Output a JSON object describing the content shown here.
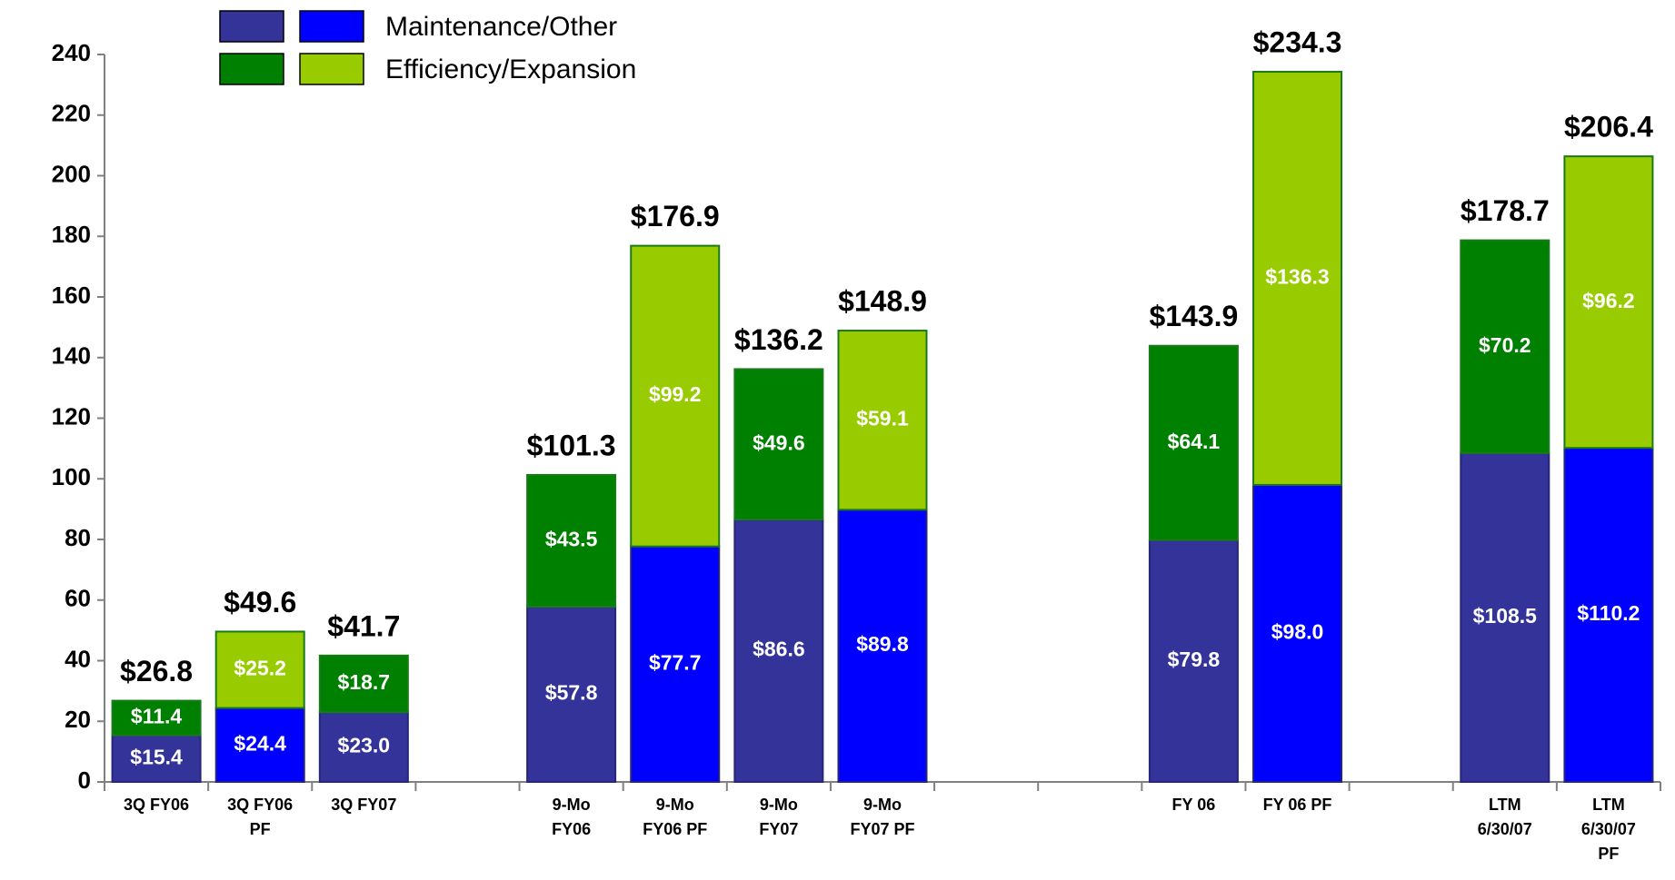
{
  "chart_data": {
    "type": "stacked-bar",
    "categories": [
      "3Q FY06",
      "3Q FY06 PF",
      "3Q FY07",
      null,
      "9-Mo FY06",
      "9-Mo FY06 PF",
      "9-Mo FY07",
      "9-Mo FY07 PF",
      null,
      null,
      "FY 06",
      "FY 06 PF",
      null,
      "LTM 6/30/07",
      "LTM 6/30/07 PF"
    ],
    "series": [
      {
        "name": "Maintenance/Other",
        "colors": [
          "#333399",
          "#0000ff",
          "#333399",
          null,
          "#333399",
          "#0000ff",
          "#333399",
          "#0000ff",
          null,
          null,
          "#333399",
          "#0000ff",
          null,
          "#333399",
          "#0000ff"
        ],
        "values": [
          15.4,
          24.4,
          23.0,
          null,
          57.8,
          77.7,
          86.6,
          89.8,
          null,
          null,
          79.8,
          98.0,
          null,
          108.5,
          110.2
        ],
        "value_labels": [
          "$15.4",
          "$24.4",
          "$23.0",
          null,
          "$57.8",
          "$77.7",
          "$86.6",
          "$89.8",
          null,
          null,
          "$79.8",
          "$98.0",
          null,
          "$108.5",
          "$110.2"
        ]
      },
      {
        "name": "Efficiency/Expansion",
        "colors": [
          "#008000",
          "#99cc00",
          "#008000",
          null,
          "#008000",
          "#99cc00",
          "#008000",
          "#99cc00",
          null,
          null,
          "#008000",
          "#99cc00",
          null,
          "#008000",
          "#99cc00"
        ],
        "values": [
          11.4,
          25.2,
          18.7,
          null,
          43.5,
          99.2,
          49.6,
          59.1,
          null,
          null,
          64.1,
          136.3,
          null,
          70.2,
          96.2
        ],
        "value_labels": [
          "$11.4",
          "$25.2",
          "$18.7",
          null,
          "$43.5",
          "$99.2",
          "$49.6",
          "$59.1",
          null,
          null,
          "$64.1",
          "$136.3",
          null,
          "$70.2",
          "$96.2"
        ]
      }
    ],
    "totals": [
      26.8,
      49.6,
      41.7,
      null,
      101.3,
      176.9,
      136.2,
      148.9,
      null,
      null,
      143.9,
      234.3,
      null,
      178.7,
      206.4
    ],
    "total_labels": [
      "$26.8",
      "$49.6",
      "$41.7",
      null,
      "$101.3",
      "$176.9",
      "$136.2",
      "$148.9",
      null,
      null,
      "$143.9",
      "$234.3",
      null,
      "$178.7",
      "$206.4"
    ],
    "ylim": [
      0,
      240
    ],
    "yticks": [
      0,
      20,
      40,
      60,
      80,
      100,
      120,
      140,
      160,
      180,
      200,
      220,
      240
    ],
    "grid": false
  }
}
